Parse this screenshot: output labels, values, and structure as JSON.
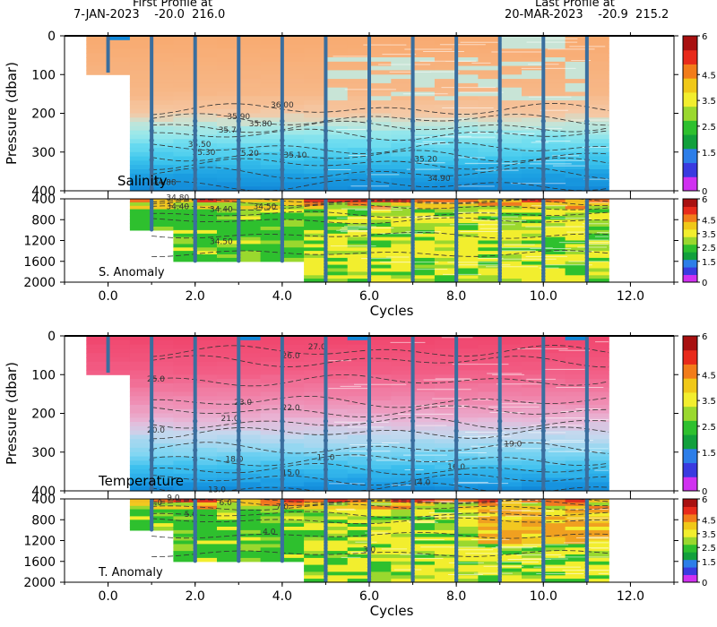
{
  "header": {
    "first_label": "First Profile at",
    "first_value": "7-JAN-2023    -20.0  216.0",
    "last_label": "Last Profile at",
    "last_value": "20-MAR-2023    -20.9  215.2"
  },
  "colors": {
    "profile_line": "#3a6e9e",
    "colorbar": [
      "#d030f0",
      "#3a3ae0",
      "#2d7ee8",
      "#12a03c",
      "#2ec02e",
      "#9ad82e",
      "#f2ee2e",
      "#f0c818",
      "#f27c1a",
      "#e82a1a",
      "#a81010"
    ]
  },
  "chart_data": [
    {
      "type": "heatmap",
      "title": "",
      "panel_label": "Salinity",
      "xlabel": "",
      "ylabel": "Pressure (dbar)",
      "xlim": [
        -1,
        13
      ],
      "ylim": [
        0,
        400
      ],
      "x_ticks": [
        0,
        2,
        4,
        6,
        8,
        10,
        12
      ],
      "x_tick_labels": [
        "0.0",
        "2.0",
        "4.0",
        "6.0",
        "8.0",
        "10.0",
        "12.0"
      ],
      "y_ticks": [
        0,
        100,
        200,
        300,
        400
      ],
      "y_tick_labels": [
        "0",
        "100",
        "200",
        "300",
        "400"
      ],
      "colorbar_ticks": [
        "6",
        "4.5",
        "3.5",
        "2.5",
        "1.5",
        "0"
      ],
      "profile_cycles": [
        0,
        1,
        2,
        3,
        4,
        5,
        6,
        7,
        8,
        9,
        10,
        11
      ],
      "contour_labels": [
        {
          "text": "36.00",
          "x": 4.0,
          "y": 185
        },
        {
          "text": "35.90",
          "x": 3.0,
          "y": 215
        },
        {
          "text": "35.80",
          "x": 3.5,
          "y": 233
        },
        {
          "text": "35.70",
          "x": 2.8,
          "y": 250
        },
        {
          "text": "35.50",
          "x": 2.1,
          "y": 287
        },
        {
          "text": "35.30",
          "x": 2.2,
          "y": 308
        },
        {
          "text": "35.20",
          "x": 3.2,
          "y": 310
        },
        {
          "text": "35.10",
          "x": 4.3,
          "y": 315
        },
        {
          "text": "35.20",
          "x": 7.3,
          "y": 325
        },
        {
          "text": "34.90",
          "x": 7.6,
          "y": 375
        },
        {
          "text": "34.88",
          "x": 1.3,
          "y": 385
        }
      ]
    },
    {
      "type": "heatmap",
      "title": "",
      "panel_label": "S. Anomaly",
      "xlabel": "Cycles",
      "ylabel": "",
      "xlim": [
        -1,
        13
      ],
      "ylim": [
        400,
        2000
      ],
      "x_ticks": [
        0,
        2,
        4,
        6,
        8,
        10,
        12
      ],
      "x_tick_labels": [
        "0.0",
        "2.0",
        "4.0",
        "6.0",
        "8.0",
        "10.0",
        "12.0"
      ],
      "y_ticks": [
        400,
        800,
        1200,
        1600,
        2000
      ],
      "y_tick_labels": [
        "400",
        "800",
        "1200",
        "1600",
        "2000"
      ],
      "colorbar_ticks": [
        "6",
        "4.5",
        "3.5",
        "2.5",
        "1.5",
        "0"
      ],
      "profile_cycles": [
        1,
        2,
        3,
        4,
        5,
        6,
        7,
        8,
        9,
        10,
        11
      ],
      "contour_labels": [
        {
          "text": "34.80",
          "x": 1.6,
          "y": 430
        },
        {
          "text": "34.40",
          "x": 1.6,
          "y": 600
        },
        {
          "text": "34.40",
          "x": 2.6,
          "y": 650
        },
        {
          "text": "34.50",
          "x": 3.6,
          "y": 600
        },
        {
          "text": "34.50",
          "x": 2.6,
          "y": 1270
        }
      ]
    },
    {
      "type": "heatmap",
      "title": "",
      "panel_label": "Temperature",
      "xlabel": "",
      "ylabel": "Pressure (dbar)",
      "xlim": [
        -1,
        13
      ],
      "ylim": [
        0,
        400
      ],
      "x_ticks": [
        0,
        2,
        4,
        6,
        8,
        10,
        12
      ],
      "x_tick_labels": [
        "0.0",
        "2.0",
        "4.0",
        "6.0",
        "8.0",
        "10.0",
        "12.0"
      ],
      "y_ticks": [
        0,
        100,
        200,
        300,
        400
      ],
      "y_tick_labels": [
        "0",
        "100",
        "200",
        "300",
        "400"
      ],
      "colorbar_ticks": [
        "6",
        "4.5",
        "3.5",
        "2.5",
        "1.5",
        "0"
      ],
      "profile_cycles": [
        0,
        1,
        2,
        3,
        4,
        5,
        6,
        7,
        8,
        9,
        10,
        11
      ],
      "contour_labels": [
        {
          "text": "27.0",
          "x": 4.8,
          "y": 35
        },
        {
          "text": "26.0",
          "x": 4.2,
          "y": 58
        },
        {
          "text": "25.0",
          "x": 1.1,
          "y": 118
        },
        {
          "text": "23.0",
          "x": 3.1,
          "y": 178
        },
        {
          "text": "22.0",
          "x": 4.2,
          "y": 192
        },
        {
          "text": "21.0",
          "x": 2.8,
          "y": 220
        },
        {
          "text": "20.0",
          "x": 1.1,
          "y": 250
        },
        {
          "text": "19.0",
          "x": 9.3,
          "y": 285
        },
        {
          "text": "18.0",
          "x": 2.9,
          "y": 325
        },
        {
          "text": "17.0",
          "x": 5.0,
          "y": 320
        },
        {
          "text": "16.0",
          "x": 8.0,
          "y": 345
        },
        {
          "text": "15.0",
          "x": 4.2,
          "y": 360
        },
        {
          "text": "14.0",
          "x": 7.2,
          "y": 385
        },
        {
          "text": "13.0",
          "x": 2.5,
          "y": 403
        }
      ]
    },
    {
      "type": "heatmap",
      "title": "",
      "panel_label": "T. Anomaly",
      "xlabel": "Cycles",
      "ylabel": "",
      "xlim": [
        -1,
        13
      ],
      "ylim": [
        400,
        2000
      ],
      "x_ticks": [
        0,
        2,
        4,
        6,
        8,
        10,
        12
      ],
      "x_tick_labels": [
        "0.0",
        "2.0",
        "4.0",
        "6.0",
        "8.0",
        "10.0",
        "12.0"
      ],
      "y_ticks": [
        400,
        800,
        1200,
        1600,
        2000
      ],
      "y_tick_labels": [
        "400",
        "800",
        "1200",
        "1600",
        "2000"
      ],
      "colorbar_ticks": [
        "6",
        "4.5",
        "3.5",
        "2.5",
        "1.5",
        "0"
      ],
      "profile_cycles": [
        1,
        2,
        3,
        4,
        5,
        6,
        7,
        8,
        9,
        10,
        11
      ],
      "contour_labels": [
        {
          "text": "9.0",
          "x": 1.5,
          "y": 430
        },
        {
          "text": "7.0",
          "x": 1.1,
          "y": 520
        },
        {
          "text": "6.0",
          "x": 2.7,
          "y": 520
        },
        {
          "text": "7.0",
          "x": 4.0,
          "y": 600
        },
        {
          "text": "5.0",
          "x": 1.9,
          "y": 740
        },
        {
          "text": "4.0",
          "x": 3.7,
          "y": 1080
        },
        {
          "text": "3.0",
          "x": 6.0,
          "y": 1420
        }
      ]
    }
  ]
}
